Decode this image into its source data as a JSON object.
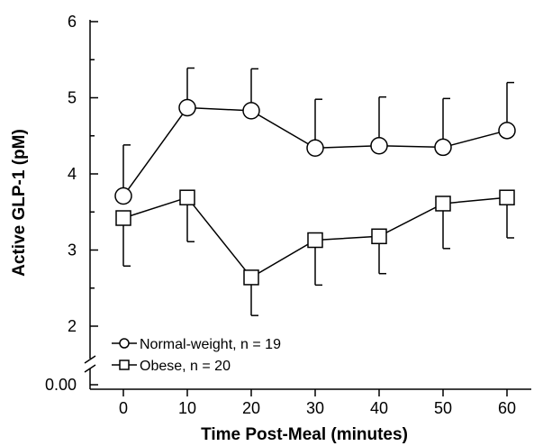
{
  "chart_data": {
    "type": "line",
    "title": "",
    "xlabel": "Time Post-Meal (minutes)",
    "ylabel": "Active GLP-1 (pM)",
    "x": [
      0,
      10,
      20,
      30,
      40,
      50,
      60
    ],
    "x_ticks": [
      "0",
      "10",
      "20",
      "30",
      "40",
      "50",
      "60"
    ],
    "y_ticks": [
      "2",
      "3",
      "4",
      "5",
      "6"
    ],
    "y_break_label": "0.00",
    "xlim": [
      -8,
      68
    ],
    "ylim_upper_segment": [
      1.8,
      6
    ],
    "y_axis_break": true,
    "grid": false,
    "legend_position": "bottom-left",
    "series": [
      {
        "name": "Normal-weight, n = 19",
        "marker": "circle",
        "y": [
          3.71,
          4.87,
          4.83,
          4.34,
          4.37,
          4.35,
          4.57
        ],
        "error_upper": [
          4.38,
          5.39,
          5.38,
          4.98,
          5.01,
          4.99,
          5.2
        ]
      },
      {
        "name": "Obese, n = 20",
        "marker": "square",
        "y": [
          3.42,
          3.69,
          2.64,
          3.13,
          3.18,
          3.61,
          3.69
        ],
        "error_lower": [
          2.79,
          3.11,
          2.14,
          2.54,
          2.69,
          3.02,
          3.16
        ]
      }
    ],
    "colors": {
      "line": "#000000",
      "marker_fill": "#ffffff"
    }
  }
}
